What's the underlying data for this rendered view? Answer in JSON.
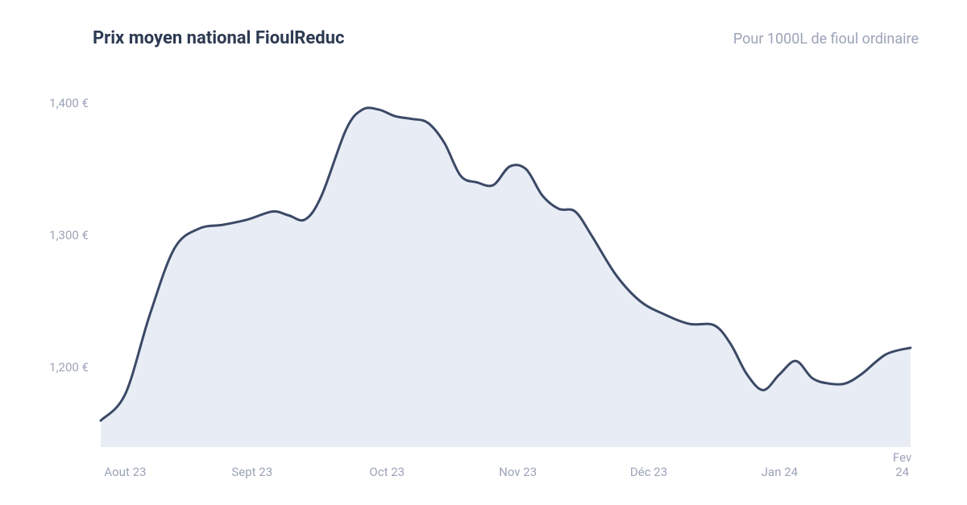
{
  "header": {
    "title": "Prix moyen national FioulReduc",
    "subtitle": "Pour 1000L de fioul ordinaire"
  },
  "chart": {
    "type": "area",
    "background_color": "#ffffff",
    "line_color": "#3b4966",
    "line_width": 3,
    "fill_color": "#e8ecf5",
    "fill_opacity": 1,
    "title_color": "#2d3a52",
    "subtitle_color": "#9ca3b8",
    "axis_label_color": "#9ca3b8",
    "axis_label_fontsize": 15,
    "title_fontsize": 22,
    "subtitle_fontsize": 18,
    "ylim": [
      1140,
      1420
    ],
    "y_ticks": [
      {
        "value": 1200,
        "label": "1,200 €"
      },
      {
        "value": 1300,
        "label": "1,300 €"
      },
      {
        "value": 1400,
        "label": "1,400 €"
      }
    ],
    "x_ticks": [
      {
        "pos": 0.03,
        "label": "Aout 23"
      },
      {
        "pos": 0.185,
        "label": "Sept 23"
      },
      {
        "pos": 0.35,
        "label": "Oct 23"
      },
      {
        "pos": 0.51,
        "label": "Nov 23"
      },
      {
        "pos": 0.67,
        "label": "Déc 23"
      },
      {
        "pos": 0.83,
        "label": "Jan 24"
      },
      {
        "pos": 0.98,
        "label": "Fev 24"
      }
    ],
    "data": [
      {
        "x": 0.0,
        "y": 1160
      },
      {
        "x": 0.03,
        "y": 1180
      },
      {
        "x": 0.06,
        "y": 1240
      },
      {
        "x": 0.09,
        "y": 1290
      },
      {
        "x": 0.12,
        "y": 1305
      },
      {
        "x": 0.15,
        "y": 1308
      },
      {
        "x": 0.18,
        "y": 1312
      },
      {
        "x": 0.21,
        "y": 1318
      },
      {
        "x": 0.23,
        "y": 1315
      },
      {
        "x": 0.25,
        "y": 1312
      },
      {
        "x": 0.27,
        "y": 1330
      },
      {
        "x": 0.3,
        "y": 1380
      },
      {
        "x": 0.32,
        "y": 1395
      },
      {
        "x": 0.34,
        "y": 1395
      },
      {
        "x": 0.36,
        "y": 1390
      },
      {
        "x": 0.38,
        "y": 1388
      },
      {
        "x": 0.4,
        "y": 1385
      },
      {
        "x": 0.42,
        "y": 1370
      },
      {
        "x": 0.44,
        "y": 1345
      },
      {
        "x": 0.46,
        "y": 1340
      },
      {
        "x": 0.48,
        "y": 1338
      },
      {
        "x": 0.5,
        "y": 1352
      },
      {
        "x": 0.52,
        "y": 1350
      },
      {
        "x": 0.54,
        "y": 1330
      },
      {
        "x": 0.56,
        "y": 1320
      },
      {
        "x": 0.58,
        "y": 1318
      },
      {
        "x": 0.6,
        "y": 1300
      },
      {
        "x": 0.63,
        "y": 1270
      },
      {
        "x": 0.66,
        "y": 1250
      },
      {
        "x": 0.69,
        "y": 1240
      },
      {
        "x": 0.72,
        "y": 1233
      },
      {
        "x": 0.75,
        "y": 1232
      },
      {
        "x": 0.77,
        "y": 1218
      },
      {
        "x": 0.79,
        "y": 1195
      },
      {
        "x": 0.81,
        "y": 1183
      },
      {
        "x": 0.83,
        "y": 1195
      },
      {
        "x": 0.85,
        "y": 1205
      },
      {
        "x": 0.87,
        "y": 1192
      },
      {
        "x": 0.89,
        "y": 1188
      },
      {
        "x": 0.91,
        "y": 1188
      },
      {
        "x": 0.93,
        "y": 1195
      },
      {
        "x": 0.96,
        "y": 1210
      },
      {
        "x": 0.99,
        "y": 1215
      }
    ]
  }
}
